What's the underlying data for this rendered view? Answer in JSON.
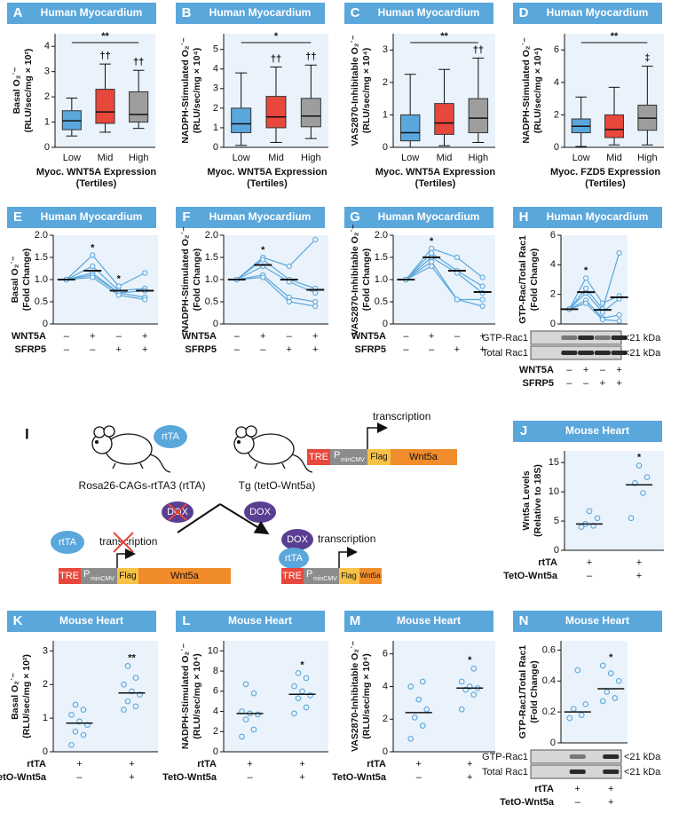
{
  "chart_data": [
    {
      "type": "box",
      "panel": "A",
      "header": "Human Myocardium",
      "y_label": [
        "Basal O₂˙⁻",
        "(RLU/sec/mg × 10²)"
      ],
      "categories": [
        "Low",
        "Mid",
        "High"
      ],
      "x_label": [
        "Myoc. WNT5A Expression",
        "(Tertiles)"
      ],
      "boxes": [
        {
          "color": "#5aa7dc",
          "whisker_low": 0.45,
          "q1": 0.7,
          "median": 1.05,
          "q3": 1.45,
          "whisker_high": 1.95
        },
        {
          "color": "#e8473b",
          "whisker_low": 0.6,
          "q1": 0.95,
          "median": 1.4,
          "q3": 2.3,
          "whisker_high": 3.3
        },
        {
          "color": "#9d9d9d",
          "whisker_low": 0.75,
          "q1": 1.0,
          "median": 1.3,
          "q3": 2.2,
          "whisker_high": 3.05
        }
      ],
      "bracket": "**",
      "marks": [
        null,
        "††",
        "††"
      ],
      "ylim": [
        0,
        4.5
      ],
      "yticks": [
        0,
        1,
        2,
        3,
        4
      ]
    },
    {
      "type": "box",
      "panel": "B",
      "header": "Human Myocardium",
      "y_label": [
        "NADPH-Stimulated O₂˙⁻",
        "(RLU/sec/mg × 10⁴)"
      ],
      "categories": [
        "Low",
        "Mid",
        "High"
      ],
      "x_label": [
        "Myoc. WNT5A Expression",
        "(Tertiles)"
      ],
      "boxes": [
        {
          "color": "#5aa7dc",
          "whisker_low": 0.1,
          "q1": 0.75,
          "median": 1.2,
          "q3": 2.0,
          "whisker_high": 3.8
        },
        {
          "color": "#e8473b",
          "whisker_low": 0.25,
          "q1": 1.0,
          "median": 1.55,
          "q3": 2.6,
          "whisker_high": 4.1
        },
        {
          "color": "#9d9d9d",
          "whisker_low": 0.45,
          "q1": 1.05,
          "median": 1.6,
          "q3": 2.5,
          "whisker_high": 4.2
        }
      ],
      "bracket": "*",
      "marks": [
        null,
        "††",
        "††"
      ],
      "ylim": [
        0,
        5.8
      ],
      "yticks": [
        0,
        1,
        2,
        3,
        4,
        5
      ]
    },
    {
      "type": "box",
      "panel": "C",
      "header": "Human Myocardium",
      "y_label": [
        "VAS2870-Inhibitable O₂˙⁻",
        "(RLU/sec/mg × 10⁴)"
      ],
      "categories": [
        "Low",
        "Mid",
        "High"
      ],
      "x_label": [
        "Myoc. WNT5A Expression",
        "(Tertiles)"
      ],
      "boxes": [
        {
          "color": "#5aa7dc",
          "whisker_low": 0.0,
          "q1": 0.2,
          "median": 0.45,
          "q3": 1.0,
          "whisker_high": 2.25
        },
        {
          "color": "#e8473b",
          "whisker_low": 0.05,
          "q1": 0.4,
          "median": 0.75,
          "q3": 1.35,
          "whisker_high": 2.4
        },
        {
          "color": "#9d9d9d",
          "whisker_low": 0.15,
          "q1": 0.45,
          "median": 0.9,
          "q3": 1.5,
          "whisker_high": 2.75
        }
      ],
      "bracket": "**",
      "marks": [
        null,
        null,
        "††"
      ],
      "ylim": [
        0,
        3.5
      ],
      "yticks": [
        0,
        1,
        2,
        3
      ]
    },
    {
      "type": "box",
      "panel": "D",
      "header": "Human Myocardium",
      "y_label": [
        "NADPH-Stimulated O₂˙⁻",
        "(RLU/sec/mg × 10⁴)"
      ],
      "categories": [
        "Low",
        "Mid",
        "High"
      ],
      "x_label": [
        "Myoc. FZD5 Expression",
        "(Tertiles)"
      ],
      "boxes": [
        {
          "color": "#5aa7dc",
          "whisker_low": 0.05,
          "q1": 0.9,
          "median": 1.3,
          "q3": 1.75,
          "whisker_high": 3.1
        },
        {
          "color": "#e8473b",
          "whisker_low": 0.15,
          "q1": 0.6,
          "median": 1.1,
          "q3": 2.0,
          "whisker_high": 3.7
        },
        {
          "color": "#9d9d9d",
          "whisker_low": 0.15,
          "q1": 1.05,
          "median": 1.8,
          "q3": 2.6,
          "whisker_high": 5.0
        }
      ],
      "bracket": "**",
      "marks": [
        null,
        null,
        "‡"
      ],
      "ylim": [
        0,
        7
      ],
      "yticks": [
        0,
        2,
        4,
        6
      ]
    },
    {
      "type": "paired-line",
      "panel": "E",
      "header": "Human Myocardium",
      "y_label": [
        "Basal O₂˙⁻",
        "(Fold Change)"
      ],
      "color": "#5aa7dc",
      "series": [
        {
          "values": [
            1,
            1.55,
            0.85,
            1.15
          ]
        },
        {
          "values": [
            1,
            1.3,
            0.75,
            0.8
          ]
        },
        {
          "values": [
            1,
            1.15,
            0.7,
            0.75
          ]
        },
        {
          "values": [
            1,
            1.1,
            0.7,
            0.6
          ]
        },
        {
          "values": [
            1,
            1.05,
            0.65,
            0.55
          ]
        }
      ],
      "means": [
        1,
        1.2,
        0.75,
        0.75
      ],
      "marks": [
        null,
        "*",
        "*",
        null
      ],
      "conditions": [
        {
          "name": "WNT5A",
          "signs": [
            "–",
            "+",
            "–",
            "+"
          ]
        },
        {
          "name": "SFRP5",
          "signs": [
            "–",
            "–",
            "+",
            "+"
          ]
        }
      ],
      "ylim": [
        0,
        2
      ],
      "yticks": [
        0,
        0.5,
        {
          "value": 1,
          "label": "1.0"
        },
        1.5,
        {
          "value": 2,
          "label": "2.0"
        }
      ]
    },
    {
      "type": "paired-line",
      "panel": "F",
      "header": "Human Myocardium",
      "y_label": [
        "NADPH-Stimulated O₂˙⁻",
        "(Fold Change)"
      ],
      "color": "#5aa7dc",
      "series": [
        {
          "values": [
            1,
            1.5,
            1.3,
            1.9
          ]
        },
        {
          "values": [
            1,
            1.45,
            1.0,
            0.8
          ]
        },
        {
          "values": [
            1,
            1.3,
            0.95,
            0.7
          ]
        },
        {
          "values": [
            1,
            1.1,
            0.6,
            0.5
          ]
        },
        {
          "values": [
            1,
            1.05,
            0.5,
            0.4
          ]
        }
      ],
      "means": [
        1,
        1.33,
        1.0,
        0.77
      ],
      "marks": [
        null,
        "*",
        null,
        null
      ],
      "conditions": [
        {
          "name": "WNT5A",
          "signs": [
            "–",
            "+",
            "–",
            "+"
          ]
        },
        {
          "name": "SFRP5",
          "signs": [
            "–",
            "–",
            "+",
            "+"
          ]
        }
      ],
      "ylim": [
        0,
        2
      ],
      "yticks": [
        0,
        0.5,
        {
          "value": 1,
          "label": "1.0"
        },
        1.5,
        {
          "value": 2,
          "label": "2.0"
        }
      ]
    },
    {
      "type": "paired-line",
      "panel": "G",
      "header": "Human Myocardium",
      "y_label": [
        "VAS2870-Inhibitable O₂˙⁻",
        "(Fold Change)"
      ],
      "color": "#5aa7dc",
      "series": [
        {
          "values": [
            1,
            1.7,
            1.5,
            1.05
          ]
        },
        {
          "values": [
            1,
            1.6,
            1.2,
            0.85
          ]
        },
        {
          "values": [
            1,
            1.5,
            1.15,
            0.7
          ]
        },
        {
          "values": [
            1,
            1.4,
            0.55,
            0.55
          ]
        },
        {
          "values": [
            1,
            1.3,
            0.55,
            0.4
          ]
        }
      ],
      "means": [
        1,
        1.5,
        1.2,
        0.72
      ],
      "marks": [
        null,
        "*",
        null,
        null
      ],
      "conditions": [
        {
          "name": "WNT5A",
          "signs": [
            "–",
            "+",
            "–",
            "+"
          ]
        },
        {
          "name": "SFRP5",
          "signs": [
            "–",
            "–",
            "+",
            "+"
          ]
        }
      ],
      "ylim": [
        0,
        2
      ],
      "yticks": [
        0,
        0.5,
        {
          "value": 1,
          "label": "1.0"
        },
        1.5,
        {
          "value": 2,
          "label": "2.0"
        }
      ]
    },
    {
      "type": "paired-line",
      "panel": "H",
      "header": "Human Myocardium",
      "y_label": [
        "GTP-Rac/Total Rac1",
        "(Fold Change)"
      ],
      "color": "#5aa7dc",
      "series": [
        {
          "values": [
            1,
            3.1,
            1.4,
            1.9
          ]
        },
        {
          "values": [
            1,
            2.4,
            1.0,
            4.8
          ]
        },
        {
          "values": [
            1,
            2.1,
            0.8,
            1.7
          ]
        },
        {
          "values": [
            1,
            1.6,
            0.4,
            0.6
          ]
        },
        {
          "values": [
            1,
            1.4,
            0.3,
            0.2
          ]
        }
      ],
      "means": [
        1,
        2.15,
        0.95,
        1.8
      ],
      "marks": [
        null,
        "*",
        null,
        null
      ],
      "blot": {
        "rows": [
          "GTP-Rac1",
          "Total Rac1"
        ],
        "size_labels": [
          "<21 kDa",
          "<21 kDa"
        ]
      },
      "conditions": [
        {
          "name": "WNT5A",
          "signs": [
            "–",
            "+",
            "–",
            "+"
          ]
        },
        {
          "name": "SFRP5",
          "signs": [
            "–",
            "–",
            "+",
            "+"
          ]
        }
      ],
      "ylim": [
        0,
        6
      ],
      "yticks": [
        0,
        2,
        4,
        6
      ]
    },
    {
      "type": "dot",
      "panel": "J",
      "header": "Mouse Heart",
      "y_label": [
        "Wnt5a Levels",
        "(Relative to 18S)"
      ],
      "color": "#5aa7dc",
      "groups": [
        [
          4.0,
          4.2,
          4.5,
          5.5,
          6.7
        ],
        [
          5.5,
          9.8,
          11.5,
          12.5,
          14.5
        ]
      ],
      "means": [
        4.5,
        11.2
      ],
      "marks": [
        null,
        "*"
      ],
      "conditions": [
        {
          "name": "rtTA",
          "signs": [
            "+",
            "+"
          ]
        },
        {
          "name": "TetO-Wnt5a",
          "signs": [
            "–",
            "+"
          ]
        }
      ],
      "ylim": [
        0,
        17
      ],
      "yticks": [
        0,
        5,
        10,
        15
      ]
    },
    {
      "type": "dot",
      "panel": "K",
      "header": "Mouse Heart",
      "y_label": [
        "Basal O₂˙⁻",
        "(RLU/sec/mg × 10²)"
      ],
      "color": "#5aa7dc",
      "groups": [
        [
          0.2,
          0.5,
          0.6,
          0.8,
          0.9,
          1.1,
          1.25,
          1.4
        ],
        [
          1.25,
          1.35,
          1.5,
          1.7,
          1.8,
          2.0,
          2.2,
          2.55
        ]
      ],
      "means": [
        0.85,
        1.75
      ],
      "marks": [
        null,
        "**"
      ],
      "conditions": [
        {
          "name": "rtTA",
          "signs": [
            "+",
            "+"
          ]
        },
        {
          "name": "TetO-Wnt5a",
          "signs": [
            "–",
            "+"
          ]
        }
      ],
      "ylim": [
        0,
        3.3
      ],
      "yticks": [
        0,
        1,
        2,
        3
      ]
    },
    {
      "type": "dot",
      "panel": "L",
      "header": "Mouse Heart",
      "y_label": [
        "NADPH-Stimulated O₂˙⁻",
        "(RLU/sec/mg × 10⁴)"
      ],
      "color": "#5aa7dc",
      "groups": [
        [
          1.5,
          2.2,
          3.2,
          3.7,
          3.8,
          4.0,
          5.8,
          6.7
        ],
        [
          3.8,
          4.4,
          5.3,
          5.6,
          6.0,
          6.5,
          7.3,
          7.8
        ]
      ],
      "means": [
        3.8,
        5.7
      ],
      "marks": [
        null,
        "*"
      ],
      "conditions": [
        {
          "name": "rtTA",
          "signs": [
            "+",
            "+"
          ]
        },
        {
          "name": "TetO-Wnt5a",
          "signs": [
            "–",
            "+"
          ]
        }
      ],
      "ylim": [
        0,
        11
      ],
      "yticks": [
        0,
        2,
        4,
        6,
        8,
        10
      ]
    },
    {
      "type": "dot",
      "panel": "M",
      "header": "Mouse Heart",
      "y_label": [
        "VAS2870-Inhibitable O₂˙⁻",
        "(RLU/sec/mg × 10⁴)"
      ],
      "color": "#5aa7dc",
      "groups": [
        [
          0.8,
          1.6,
          2.1,
          2.6,
          3.2,
          4.0,
          4.3
        ],
        [
          2.6,
          3.5,
          3.8,
          3.9,
          4.0,
          4.3,
          5.1
        ]
      ],
      "means": [
        2.4,
        3.9
      ],
      "marks": [
        null,
        "*"
      ],
      "conditions": [
        {
          "name": "rtTA",
          "signs": [
            "+",
            "+"
          ]
        },
        {
          "name": "TetO-Wnt5a",
          "signs": [
            "–",
            "+"
          ]
        }
      ],
      "ylim": [
        0,
        6.8
      ],
      "yticks": [
        0,
        2,
        4,
        6
      ]
    },
    {
      "type": "dot",
      "panel": "N",
      "header": "Mouse Heart",
      "y_label": [
        "GTP-Rac1/Total Rac1",
        "(Fold Change)"
      ],
      "color": "#5aa7dc",
      "groups": [
        [
          0.16,
          0.18,
          0.22,
          0.25,
          0.47
        ],
        [
          0.27,
          0.29,
          0.33,
          0.4,
          0.45,
          0.5
        ]
      ],
      "means": [
        0.2,
        0.35
      ],
      "marks": [
        null,
        "*"
      ],
      "blot": {
        "rows": [
          "GTP-Rac1",
          "Total Rac1"
        ],
        "size_labels": [
          "<21 kDa",
          "<21 kDa"
        ]
      },
      "conditions": [
        {
          "name": "rtTA",
          "signs": [
            "+",
            "+"
          ]
        },
        {
          "name": "TetO-Wnt5a",
          "signs": [
            "–",
            "+"
          ]
        }
      ],
      "ylim": [
        0,
        0.66
      ],
      "yticks": [
        0,
        0.2,
        0.4,
        0.6
      ]
    }
  ],
  "diagram": {
    "label": "I",
    "mice": [
      "Rosa26-CAGs-rtTA3 (rtTA)",
      "Tg (tetO-Wnt5a)"
    ],
    "rtta": "rtTA",
    "dox": "DOX",
    "transcription": "transcription",
    "construct": [
      "TRE",
      "P",
      "minCMV",
      "Flag",
      "Wnt5a"
    ]
  }
}
